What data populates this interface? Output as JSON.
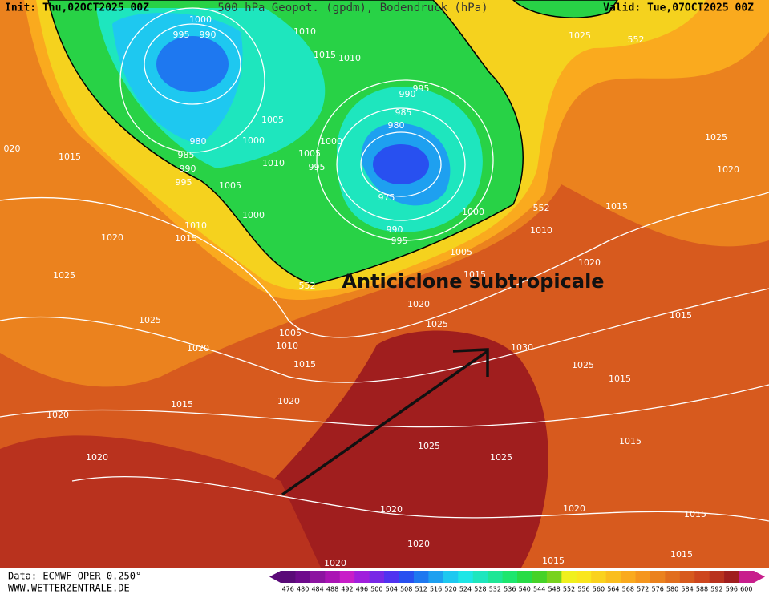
{
  "header": {
    "init": "Init: Thu,02OCT2025 00Z",
    "title": "500 hPa Geopot. (gpdm), Bodendruck (hPa)",
    "valid": "Valid: Tue,07OCT2025 00Z"
  },
  "annotation": "Anticiclone subtropicale",
  "isobar_labels": [
    "1000",
    "995",
    "990",
    "1010",
    "1015",
    "1010",
    "1025",
    "552",
    "995",
    "990",
    "985",
    "980",
    "1005",
    "1000",
    "1000",
    "1005",
    "1010",
    "995",
    "980",
    "985",
    "990",
    "995",
    "1005",
    "1000",
    "975",
    "1000",
    "552",
    "1015",
    "1010",
    "990",
    "995",
    "1005",
    "1015",
    "1020",
    "552",
    "1025",
    "1020",
    "020",
    "1015",
    "1010",
    "1015",
    "1020",
    "1025",
    "1020",
    "1025",
    "1015",
    "1025",
    "1005",
    "1010",
    "1030",
    "1020",
    "1015",
    "1025",
    "1015",
    "1020",
    "1015",
    "1020",
    "1025",
    "1015",
    "1020",
    "1025",
    "1020",
    "1020",
    "1015",
    "1020",
    "1015",
    "1020",
    "1015"
  ],
  "footer": {
    "source": "Data: ECMWF OPER 0.250°",
    "site": "WWW.WETTERZENTRALE.DE"
  },
  "colorbar": {
    "labels": [
      476,
      480,
      484,
      488,
      492,
      496,
      500,
      504,
      508,
      512,
      516,
      520,
      524,
      528,
      532,
      536,
      540,
      544,
      548,
      552,
      556,
      560,
      564,
      568,
      572,
      576,
      580,
      584,
      588,
      592,
      596,
      600
    ],
    "colors": [
      "#5a0a78",
      "#6e0a8c",
      "#8c14a0",
      "#aa14b4",
      "#c81ec8",
      "#a01edc",
      "#7828e6",
      "#5032f0",
      "#2850f0",
      "#1e78f0",
      "#1ea0f0",
      "#1ec8f0",
      "#1ee6e6",
      "#1ee6be",
      "#1ee696",
      "#1ee66e",
      "#28dc46",
      "#46d228",
      "#78d21e",
      "#f0f01e",
      "#fae61e",
      "#fad21e",
      "#fabe1e",
      "#faaa1e",
      "#f5961e",
      "#eb821e",
      "#e16e1e",
      "#d75a1e",
      "#cd461e",
      "#b9321e",
      "#a01e1e",
      "#c81e8c"
    ]
  }
}
